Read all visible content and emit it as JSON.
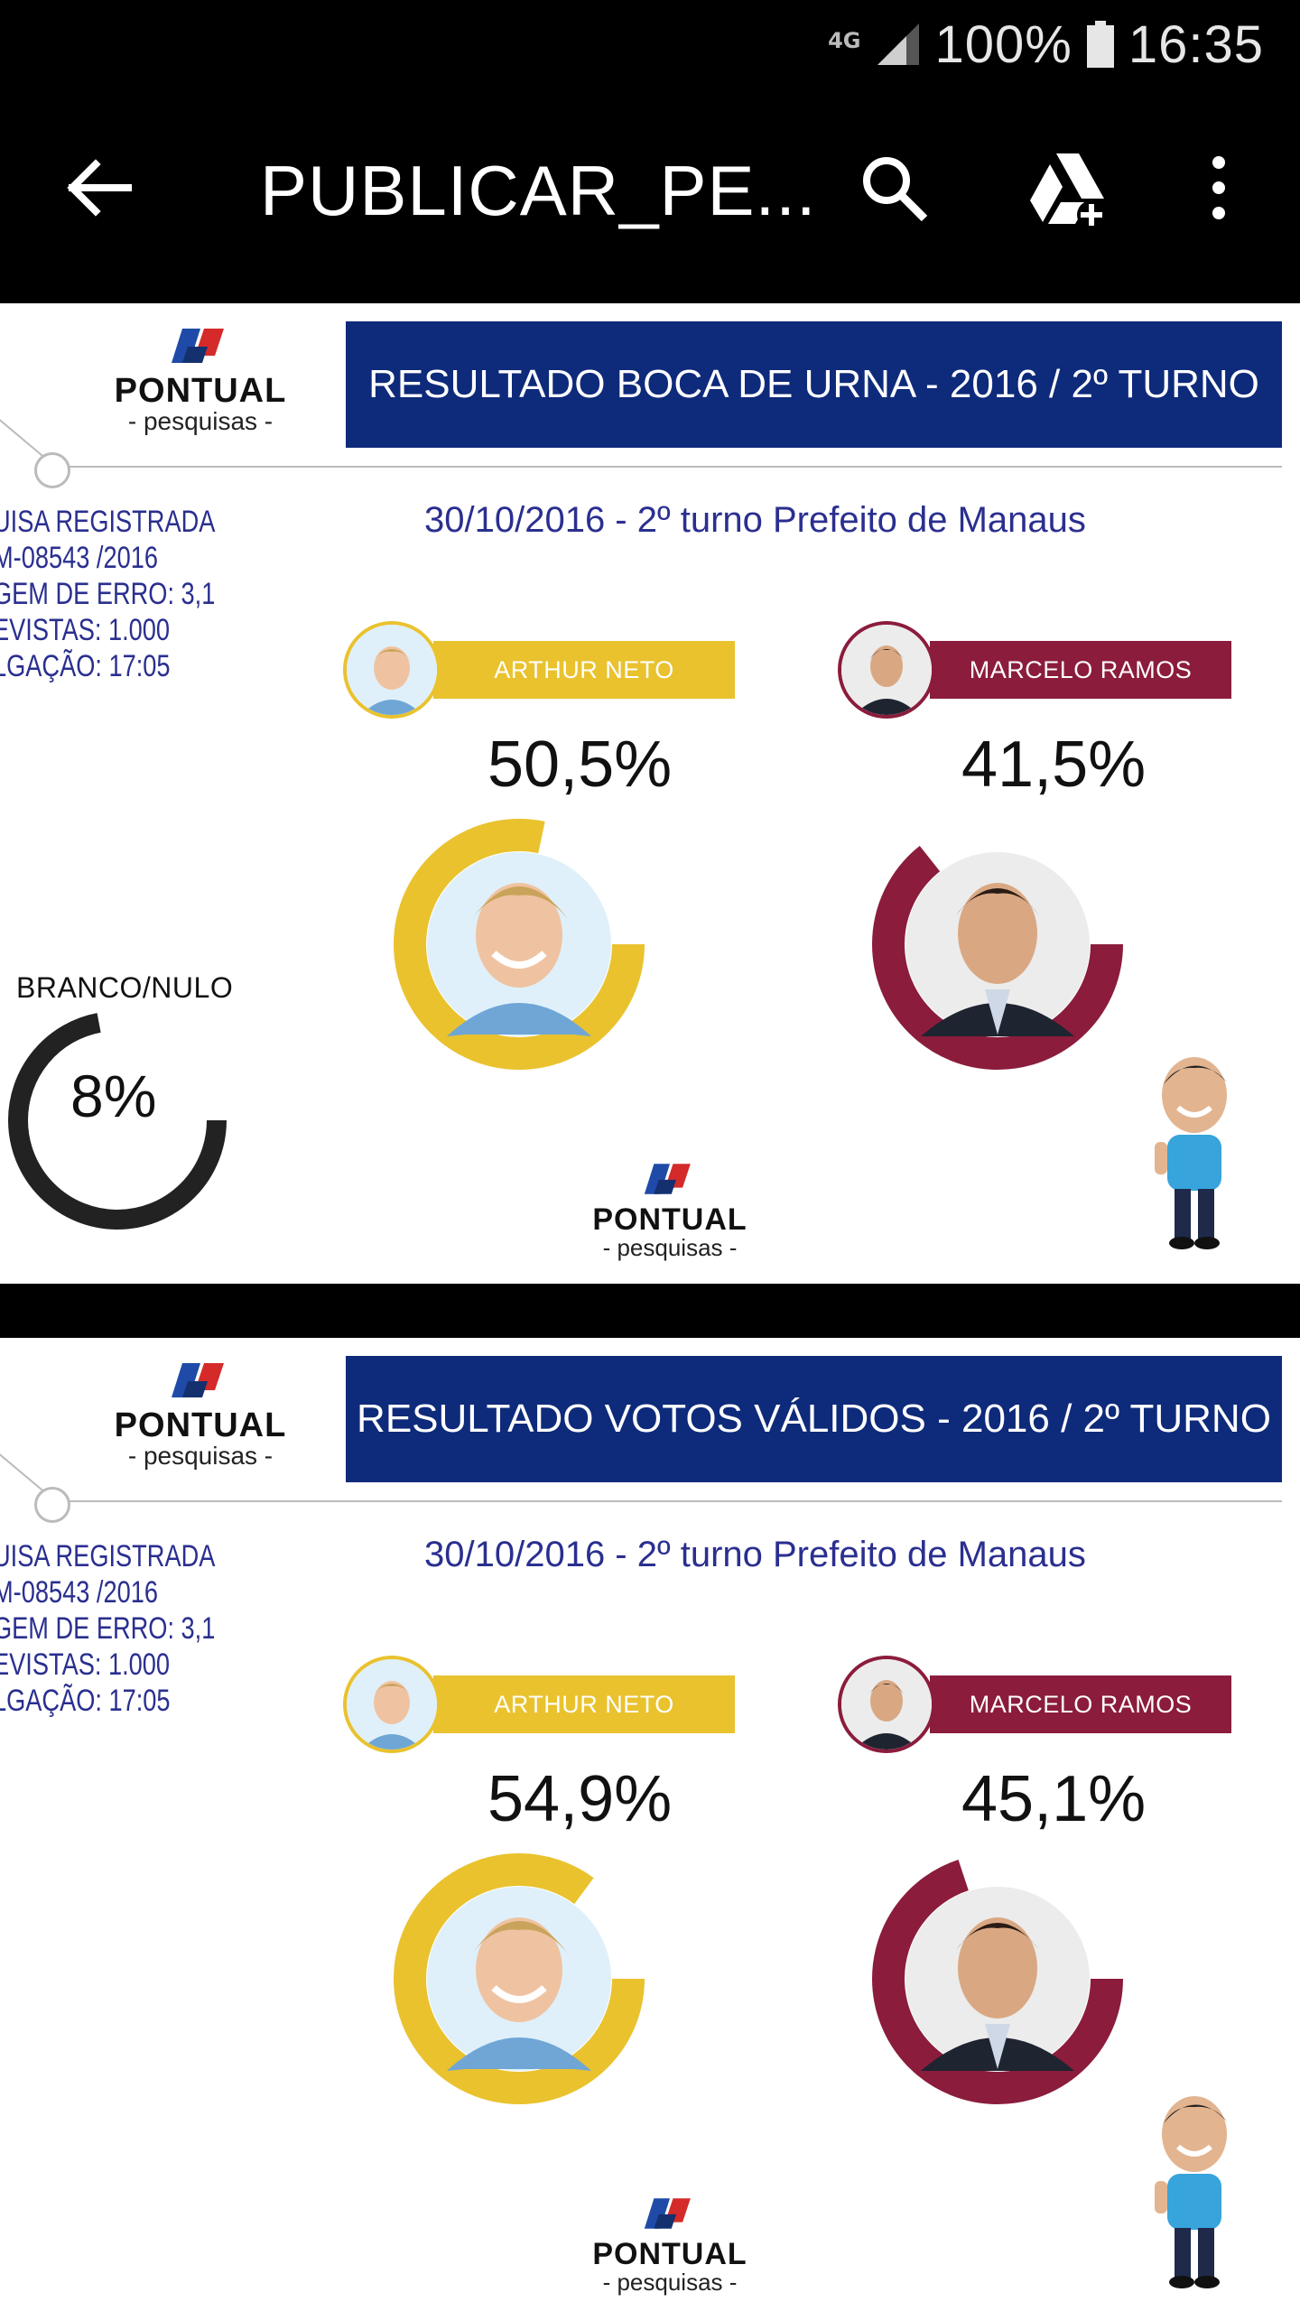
{
  "status_bar": {
    "network": "4G",
    "battery": "100%",
    "time": "16:35"
  },
  "app_bar": {
    "title": "PUBLICAR_PE..."
  },
  "posters": [
    {
      "logo_brand": "PONTUAL",
      "logo_sub": "- pesquisas -",
      "header": "RESULTADO BOCA DE URNA - 2016 / 2º TURNO",
      "meta": [
        "UISA REGISTRADA",
        "M-08543 /2016",
        "GEM DE ERRO: 3,1",
        "EVISTAS: 1.000",
        "LGAÇÃO: 17:05"
      ],
      "date": "30/10/2016 - 2º turno Prefeito de Manaus",
      "candidates": [
        {
          "name": "ARTHUR NETO",
          "percent": "50,5%",
          "value": 50.5,
          "color": "#e9c22e"
        },
        {
          "name": "MARCELO RAMOS",
          "percent": "41,5%",
          "value": 41.5,
          "color": "#8b1c3c"
        }
      ],
      "blank_null": {
        "label": "BRANCO/NULO",
        "percent": "8%",
        "value": 8,
        "color": "#222222"
      }
    },
    {
      "logo_brand": "PONTUAL",
      "logo_sub": "- pesquisas -",
      "header": "RESULTADO VOTOS VÁLIDOS - 2016 / 2º TURNO",
      "meta": [
        "UISA REGISTRADA",
        "M-08543 /2016",
        "GEM DE ERRO: 3,1",
        "EVISTAS: 1.000",
        "LGAÇÃO: 17:05"
      ],
      "date": "30/10/2016 - 2º turno Prefeito de Manaus",
      "candidates": [
        {
          "name": "ARTHUR NETO",
          "percent": "54,9%",
          "value": 54.9,
          "color": "#e9c22e"
        },
        {
          "name": "MARCELO RAMOS",
          "percent": "45,1%",
          "value": 45.1,
          "color": "#8b1c3c"
        }
      ]
    }
  ],
  "icons": [
    "back-arrow-icon",
    "search-icon",
    "drive-add-icon",
    "more-vert-icon",
    "signal-icon",
    "battery-icon"
  ]
}
